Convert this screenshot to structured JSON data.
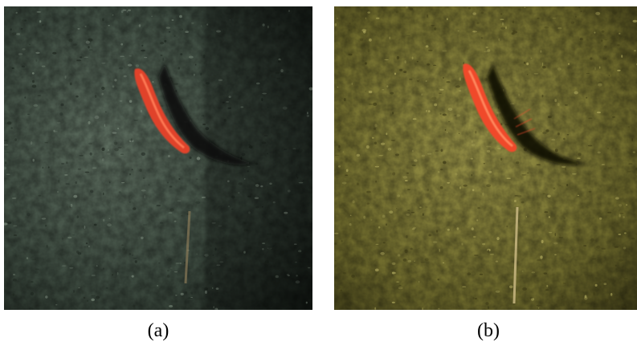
{
  "panels": [
    {
      "id": "a",
      "caption": "(a)",
      "palette": {
        "base": "#3d4b40",
        "light": "#5d6d5f",
        "dark": "#141a15",
        "speck_light": "#7d8c7d",
        "speck_dark": "#1c241d",
        "shrimp": "#e0432c",
        "shrimp_highlight": "#ff7a55",
        "shadow": "#0a0c0a",
        "stick": "#8a7a58"
      }
    },
    {
      "id": "b",
      "caption": "(b)",
      "palette": {
        "base": "#6e6a2c",
        "light": "#9a9448",
        "dark": "#2e2c10",
        "speck_light": "#b4ad60",
        "speck_dark": "#3a3714",
        "shrimp": "#f04a2c",
        "shrimp_highlight": "#ff8a5e",
        "shadow": "#0c0b05",
        "stick": "#c9b882"
      }
    }
  ]
}
